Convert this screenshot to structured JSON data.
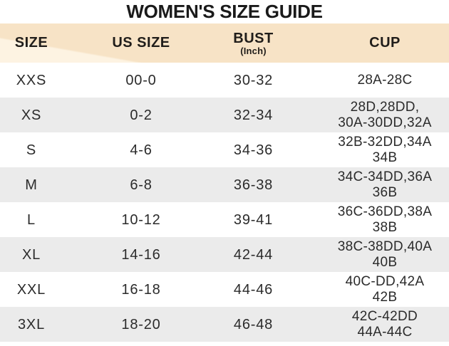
{
  "title": "WOMEN'S SIZE GUIDE",
  "table": {
    "columns": [
      {
        "label": "SIZE"
      },
      {
        "label": "US SIZE"
      },
      {
        "label": "BUST",
        "sublabel": "(Inch)"
      },
      {
        "label": "CUP"
      }
    ],
    "rows": [
      {
        "size": "XXS",
        "us_size": "00-0",
        "bust": "30-32",
        "cup": [
          "28A-28C"
        ]
      },
      {
        "size": "XS",
        "us_size": "0-2",
        "bust": "32-34",
        "cup": [
          "28D,28DD,",
          "30A-30DD,32A"
        ]
      },
      {
        "size": "S",
        "us_size": "4-6",
        "bust": "34-36",
        "cup": [
          "32B-32DD,34A",
          "34B"
        ]
      },
      {
        "size": "M",
        "us_size": "6-8",
        "bust": "36-38",
        "cup": [
          "34C-34DD,36A",
          "36B"
        ]
      },
      {
        "size": "L",
        "us_size": "10-12",
        "bust": "39-41",
        "cup": [
          "36C-36DD,38A",
          "38B"
        ]
      },
      {
        "size": "XL",
        "us_size": "14-16",
        "bust": "42-44",
        "cup": [
          "38C-38DD,40A",
          "40B"
        ]
      },
      {
        "size": "XXL",
        "us_size": "16-18",
        "bust": "44-46",
        "cup": [
          "40C-DD,42A",
          "42B"
        ]
      },
      {
        "size": "3XL",
        "us_size": "18-20",
        "bust": "46-48",
        "cup": [
          "42C-42DD",
          "44A-44C"
        ]
      }
    ]
  },
  "colors": {
    "header_bg": "#f7e3c6",
    "header_bg_light": "#fdf3e2",
    "row_bg": "#ffffff",
    "row_alt_bg": "#ebebeb",
    "text": "#2b2b2b",
    "title": "#1a1a1a"
  }
}
